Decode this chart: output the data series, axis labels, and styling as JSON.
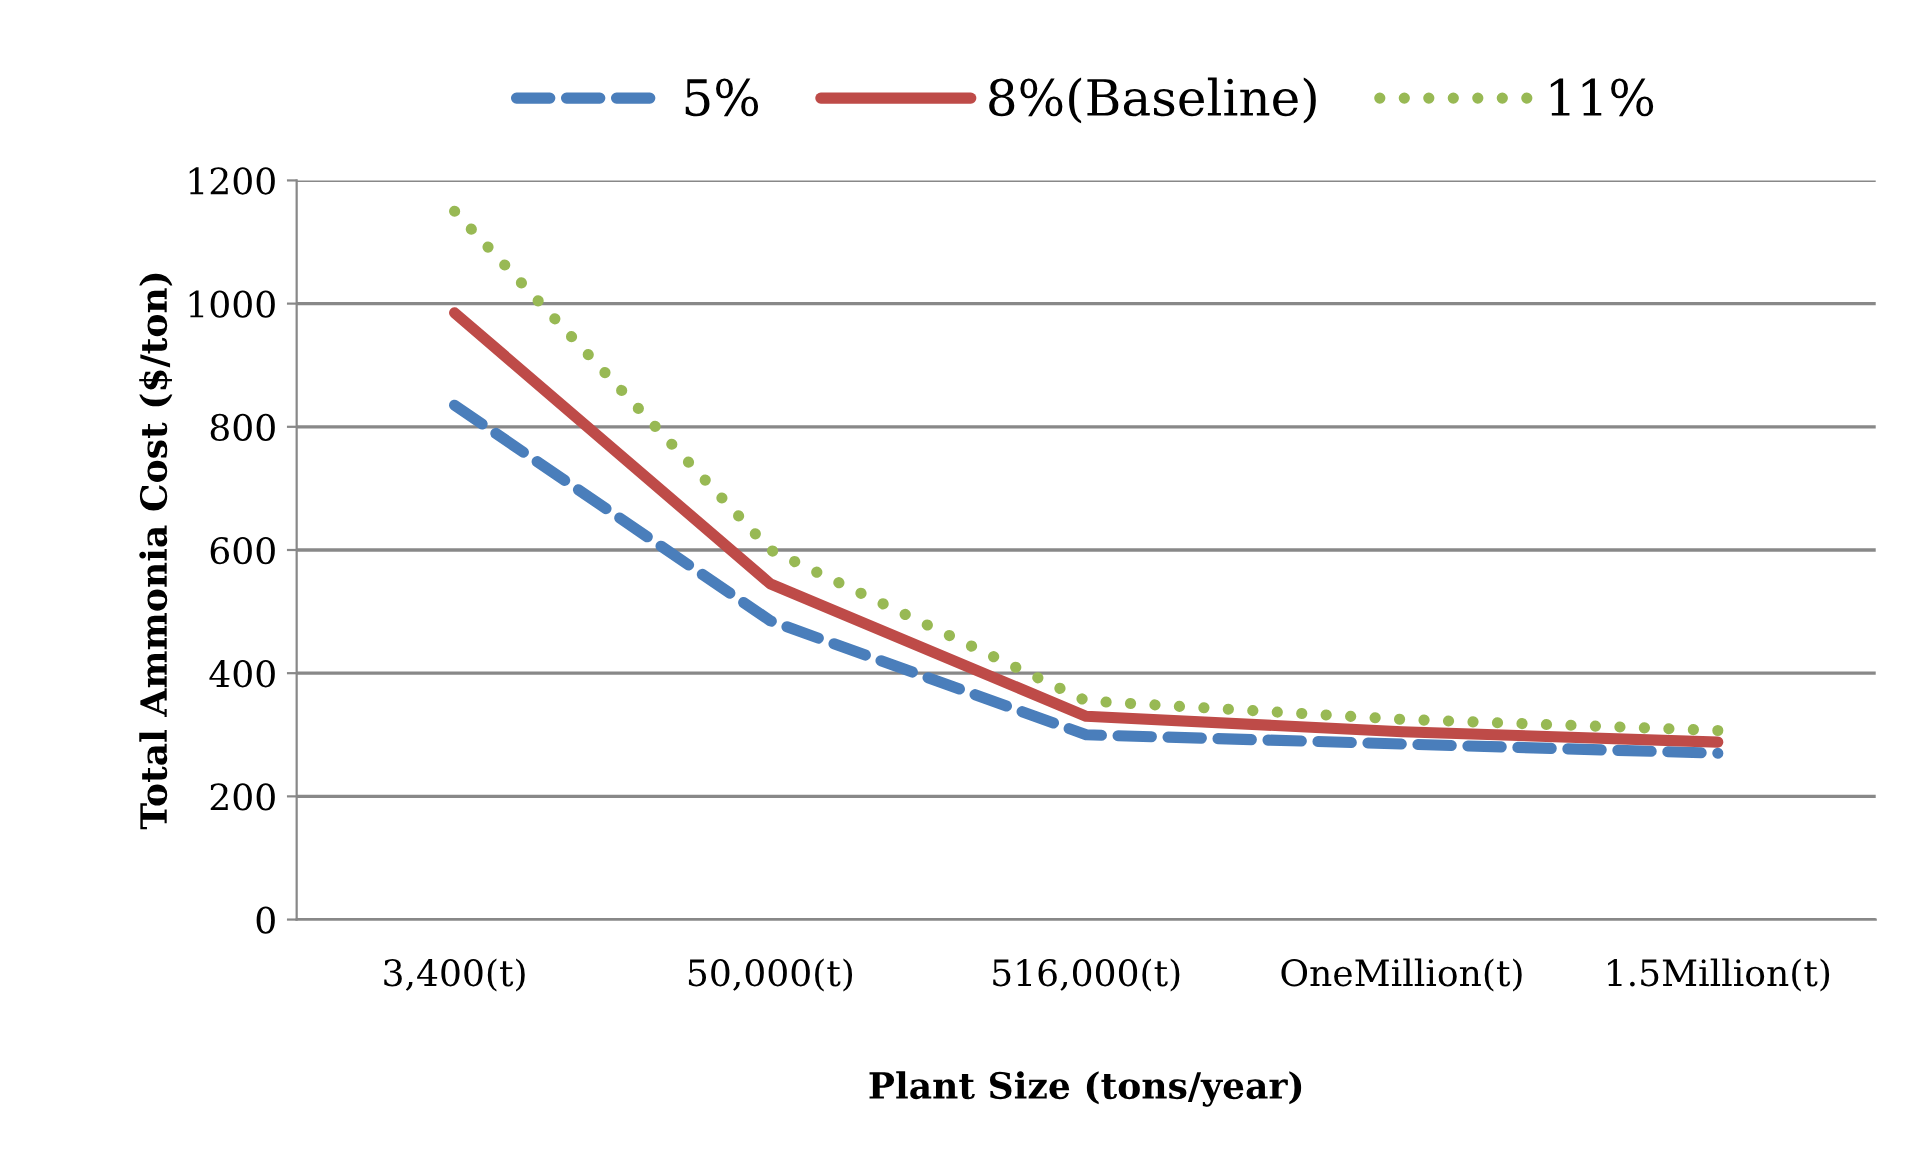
{
  "chart_data": {
    "type": "line",
    "xlabel": "Plant Size (tons/year)",
    "ylabel": "Total Ammonia Cost ($/ton)",
    "categories": [
      "3,400(t)",
      "50,000(t)",
      "516,000(t)",
      "OneMillion(t)",
      "1.5Million(t)"
    ],
    "series": [
      {
        "name": "5%",
        "color": "#4a7ebb",
        "line_style": "dashed",
        "values": [
          835,
          485,
          300,
          285,
          270
        ]
      },
      {
        "name": "8%(Baseline)",
        "color": "#be4b48",
        "line_style": "solid",
        "values": [
          985,
          545,
          330,
          305,
          288
        ]
      },
      {
        "name": "11%",
        "color": "#98b954",
        "line_style": "dotted",
        "values": [
          1150,
          600,
          355,
          325,
          307
        ]
      }
    ],
    "ylim": [
      0,
      1200
    ],
    "yticks": [
      0,
      200,
      400,
      600,
      800,
      1000,
      1200
    ],
    "grid": "y",
    "legend": "top",
    "marker": "none"
  }
}
